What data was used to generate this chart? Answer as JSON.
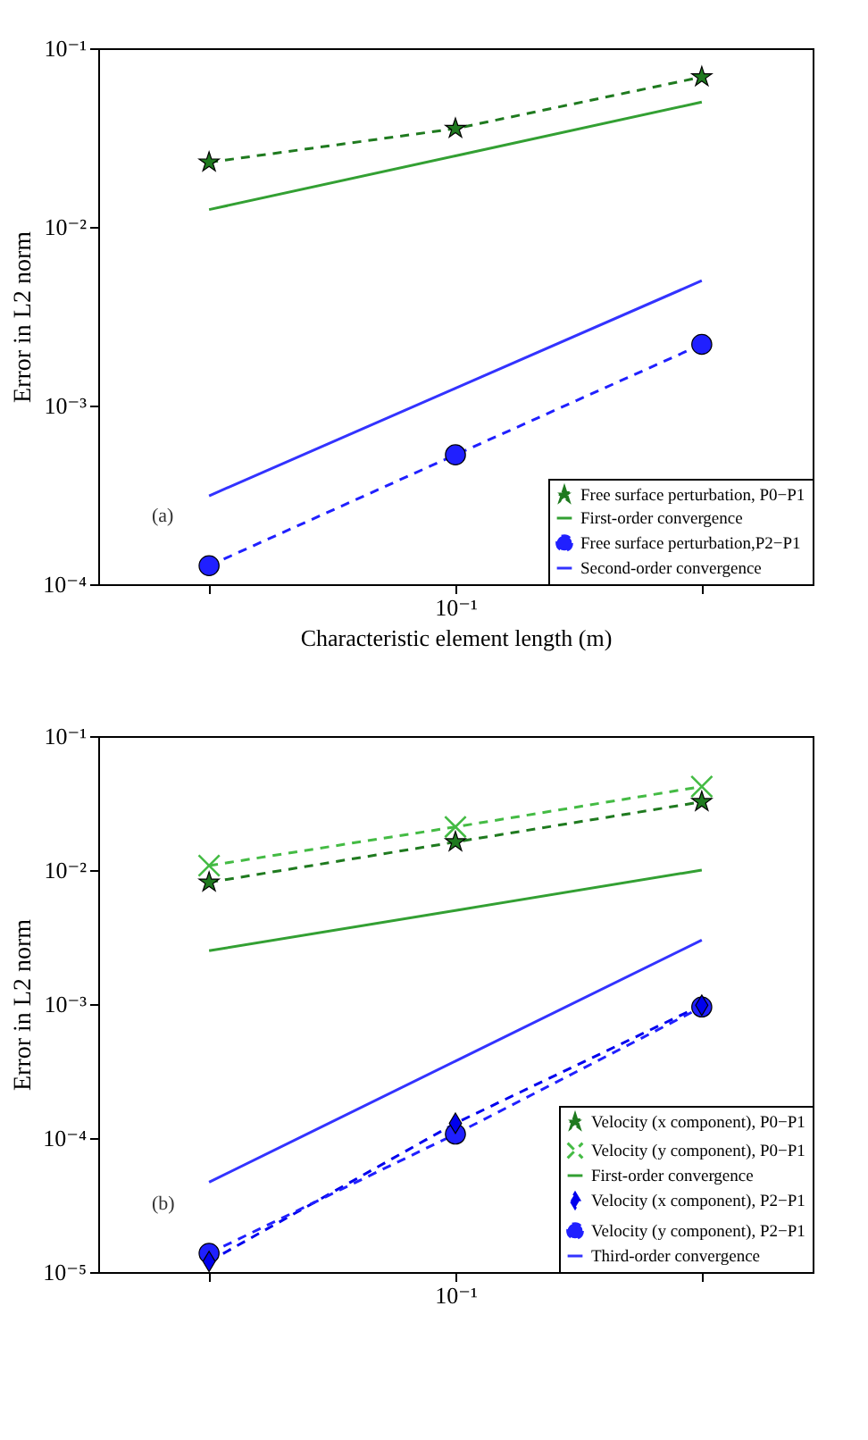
{
  "chart_data": [
    {
      "type": "line",
      "xlabel": "Characteristic element length (m)",
      "ylabel": "Error in L2 norm",
      "annotations": [
        "(a)"
      ],
      "log": "y",
      "legend": "bottom right",
      "categories": [
        null,
        "10⁻¹",
        null
      ],
      "ylim": [
        0.0001,
        0.1
      ],
      "yticks": [
        {
          "value": 0.0001,
          "label": "10⁻⁴"
        },
        {
          "value": 0.001,
          "label": "10⁻³"
        },
        {
          "value": 0.01,
          "label": "10⁻²"
        },
        {
          "value": 0.1,
          "label": "10⁻¹"
        }
      ],
      "series": [
        {
          "name": "Free surface perturbation, P0−P1",
          "color": "#1f7a1f",
          "marker": "star",
          "line_style": "dashed",
          "values": [
            0.023,
            0.0355,
            0.069
          ]
        },
        {
          "name": "First-order convergence",
          "color": "#33a033",
          "marker": "none",
          "line_style": "solid",
          "values": [
            0.0125,
            0.025,
            0.05
          ]
        },
        {
          "name": "Free surface perturbation,P2−P1",
          "color": "#2020ff",
          "marker": "circle",
          "line_style": "dashed",
          "values": [
            0.000127,
            0.00053,
            0.0022
          ]
        },
        {
          "name": "Second-order convergence",
          "color": "#3333ff",
          "marker": "none",
          "line_style": "solid",
          "values": [
            0.0003125,
            0.00125,
            0.005
          ]
        }
      ]
    },
    {
      "type": "line",
      "ylabel": "Error in L2 norm",
      "annotations": [
        "(b)"
      ],
      "log": "y",
      "legend": "bottom right",
      "categories": [
        null,
        "10⁻¹",
        null
      ],
      "ylim": [
        1e-05,
        0.1
      ],
      "yticks": [
        {
          "value": 1e-05,
          "label": "10⁻⁵"
        },
        {
          "value": 0.0001,
          "label": "10⁻⁴"
        },
        {
          "value": 0.001,
          "label": "10⁻³"
        },
        {
          "value": 0.01,
          "label": "10⁻²"
        },
        {
          "value": 0.1,
          "label": "10⁻¹"
        }
      ],
      "series": [
        {
          "name": "Velocity (x component), P0−P1",
          "color": "#1f7a1f",
          "marker": "star",
          "line_style": "dashed",
          "values": [
            0.0081,
            0.0162,
            0.0323
          ]
        },
        {
          "name": "Velocity (y component), P0−P1",
          "color": "#44bb44",
          "marker": "cross",
          "line_style": "dashed",
          "values": [
            0.0108,
            0.021,
            0.042
          ]
        },
        {
          "name": "First-order convergence",
          "color": "#33a033",
          "marker": "none",
          "line_style": "solid",
          "values": [
            0.0025,
            0.005,
            0.01
          ]
        },
        {
          "name": "Velocity (x component), P2−P1",
          "color": "#0000ee",
          "marker": "diamond",
          "line_style": "dashed",
          "values": [
            1.2e-05,
            0.000129,
            0.00098
          ]
        },
        {
          "name": "Velocity (y component), P2−P1",
          "color": "#2020ff",
          "marker": "circle",
          "line_style": "dashed",
          "values": [
            1.38e-05,
            0.000107,
            0.00095
          ]
        },
        {
          "name": "Third-order convergence",
          "color": "#3333ff",
          "marker": "none",
          "line_style": "solid",
          "values": [
            4.69e-05,
            0.000375,
            0.003
          ]
        }
      ]
    }
  ]
}
